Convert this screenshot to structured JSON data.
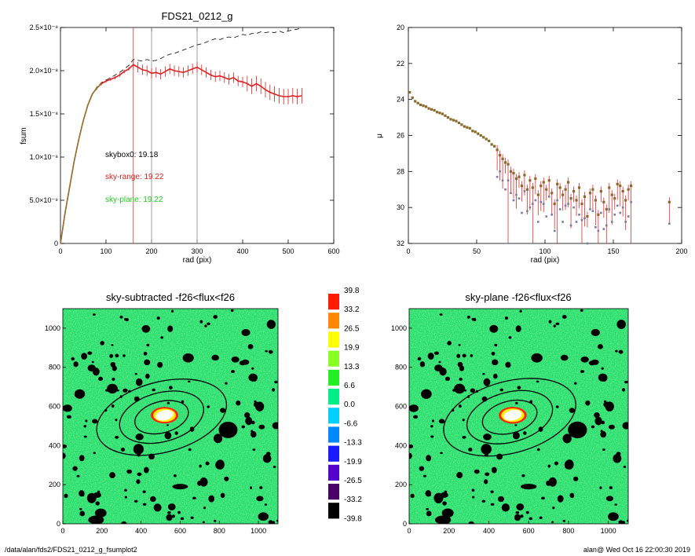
{
  "colors": {
    "fsum_red": "#e02020",
    "sky_red": "#e03030",
    "sky_green": "#22cc22",
    "dashed": "#222222",
    "curve_olive": "#8a7a2a",
    "marker": "#8a6a2a",
    "colorbar_levels": [
      "#000000",
      "#4a0066",
      "#5500cc",
      "#1a1aff",
      "#0088ff",
      "#00d0ff",
      "#00ee88",
      "#22ee22",
      "#88ff22",
      "#ffff00",
      "#ff8800",
      "#ff1a00"
    ]
  },
  "footer": {
    "left": "/data/alan/fds2/FDS21_0212_g_fsumplot2",
    "right": "alan@  Wed Oct 16 22:00:30 2019"
  },
  "chart_data": [
    {
      "type": "line",
      "title": "FDS21_0212_g",
      "xlabel": "rad (pix)",
      "ylabel": "fsum",
      "xlim": [
        0,
        600
      ],
      "ylim": [
        0,
        2.5e-08
      ],
      "xticks": [
        "0",
        "100",
        "200",
        "300",
        "400",
        "500",
        "600"
      ],
      "yticks": [
        "0",
        "5.0×10⁻⁹",
        "1.0×10⁻⁸",
        "1.5×10⁻⁸",
        "2.0×10⁻⁸",
        "2.5×10⁻⁸"
      ],
      "vlines": [
        {
          "x": 160,
          "color": "red"
        },
        {
          "x": 200,
          "color": "gray"
        },
        {
          "x": 300,
          "color": "gray"
        }
      ],
      "annotations": [
        {
          "text": "skybox0: 19.18",
          "color": "black"
        },
        {
          "text": "sky-range: 19.22",
          "color": "red"
        },
        {
          "text": "sky-plane: 19.22",
          "color": "green"
        }
      ],
      "series": [
        {
          "style": "solid",
          "x": [
            0,
            10,
            20,
            30,
            40,
            50,
            60,
            70,
            80,
            90,
            100,
            110,
            120,
            130,
            140,
            150,
            160,
            170,
            180,
            190,
            200,
            210,
            220,
            230,
            240,
            250,
            260,
            270,
            280,
            290,
            300,
            310,
            320,
            330,
            340,
            350,
            360,
            370,
            380,
            390,
            400,
            410,
            420,
            430,
            440,
            450,
            460,
            470,
            480,
            490,
            500,
            510,
            520,
            530
          ],
          "y": [
            0,
            3.5e-09,
            6.5e-09,
            9.5e-09,
            1.2e-08,
            1.42e-08,
            1.6e-08,
            1.73e-08,
            1.8e-08,
            1.85e-08,
            1.88e-08,
            1.9e-08,
            1.92e-08,
            1.95e-08,
            1.99e-08,
            2.02e-08,
            2.07e-08,
            2.04e-08,
            2.01e-08,
            2e-08,
            1.97e-08,
            1.98e-08,
            1.96e-08,
            1.99e-08,
            2.02e-08,
            2e-08,
            1.99e-08,
            1.98e-08,
            2e-08,
            2.02e-08,
            2.04e-08,
            2.01e-08,
            1.98e-08,
            1.95e-08,
            1.93e-08,
            1.94e-08,
            1.92e-08,
            1.9e-08,
            1.92e-08,
            1.88e-08,
            1.87e-08,
            1.85e-08,
            1.82e-08,
            1.85e-08,
            1.82e-08,
            1.78e-08,
            1.75e-08,
            1.73e-08,
            1.71e-08,
            1.7e-08,
            1.7e-08,
            1.71e-08,
            1.7e-08,
            1.71e-08
          ]
        },
        {
          "style": "dashed",
          "x": [
            0,
            10,
            20,
            30,
            40,
            50,
            60,
            70,
            80,
            90,
            100,
            110,
            120,
            130,
            140,
            150,
            160,
            170,
            180,
            190,
            200,
            210,
            220,
            230,
            240,
            250,
            260,
            270,
            280,
            290,
            300,
            310,
            320,
            330,
            340,
            350,
            360,
            370,
            380,
            390,
            400,
            410,
            420,
            430,
            440,
            450,
            460,
            470,
            480,
            490,
            500,
            510,
            520,
            530
          ],
          "y": [
            0,
            3.5e-09,
            6.5e-09,
            9.5e-09,
            1.2e-08,
            1.42e-08,
            1.6e-08,
            1.73e-08,
            1.81e-08,
            1.86e-08,
            1.89e-08,
            1.92e-08,
            1.95e-08,
            1.98e-08,
            2.02e-08,
            2.06e-08,
            2.13e-08,
            2.12e-08,
            2.11e-08,
            2.13e-08,
            2.11e-08,
            2.12e-08,
            2.14e-08,
            2.17e-08,
            2.19e-08,
            2.2e-08,
            2.22e-08,
            2.24e-08,
            2.26e-08,
            2.28e-08,
            2.3e-08,
            2.31e-08,
            2.33e-08,
            2.35e-08,
            2.37e-08,
            2.36e-08,
            2.38e-08,
            2.39e-08,
            2.38e-08,
            2.4e-08,
            2.42e-08,
            2.41e-08,
            2.43e-08,
            2.43e-08,
            2.45e-08,
            2.44e-08,
            2.45e-08,
            2.44e-08,
            2.46e-08,
            2.44e-08,
            2.46e-08,
            2.47e-08,
            2.48e-08,
            2.5e-08
          ]
        }
      ]
    },
    {
      "type": "scatter",
      "title": "",
      "xlabel": "rad (pix)",
      "ylabel": "μ",
      "xlim": [
        0,
        200
      ],
      "ylim": [
        32,
        20
      ],
      "xticks": [
        "0",
        "50",
        "100",
        "150",
        "200"
      ],
      "yticks": [
        "20",
        "22",
        "24",
        "26",
        "28",
        "30",
        "32"
      ],
      "series": [
        {
          "x": [
            1,
            3,
            5,
            7,
            9,
            11,
            13,
            15,
            17,
            19,
            21,
            23,
            25,
            27,
            29,
            31,
            33,
            35,
            37,
            39,
            41,
            43,
            45,
            47,
            49,
            51,
            53,
            55,
            57,
            59,
            61,
            63,
            65,
            67,
            69,
            71,
            73,
            75,
            77,
            79,
            81,
            83,
            85,
            87,
            89,
            91,
            93,
            95,
            97,
            99,
            101,
            103,
            105,
            107,
            109,
            111,
            113,
            115,
            117,
            119,
            121,
            123,
            125,
            127,
            129,
            131,
            133,
            135,
            137,
            139,
            141,
            143,
            145,
            147,
            149,
            151,
            153,
            155,
            157,
            159,
            161,
            163,
            191
          ],
          "y": [
            23.6,
            23.9,
            24.1,
            24.2,
            24.3,
            24.35,
            24.4,
            24.5,
            24.55,
            24.6,
            24.7,
            24.75,
            24.8,
            24.9,
            25.0,
            25.1,
            25.15,
            25.2,
            25.3,
            25.4,
            25.5,
            25.55,
            25.6,
            25.75,
            25.8,
            25.9,
            26.0,
            26.1,
            26.2,
            26.3,
            26.5,
            26.6,
            26.8,
            27.1,
            27.3,
            27.5,
            27.6,
            28.0,
            28.1,
            28.4,
            28.3,
            28.8,
            28.2,
            29.0,
            28.5,
            28.9,
            28.4,
            29.3,
            28.8,
            28.6,
            29.0,
            28.5,
            29.2,
            29.8,
            28.7,
            28.9,
            29.3,
            29.0,
            28.6,
            29.5,
            29.1,
            29.6,
            28.9,
            29.8,
            29.4,
            30.5,
            29.2,
            29.0,
            29.6,
            30.4,
            29.1,
            29.7,
            30.1,
            28.9,
            29.3,
            29.5,
            28.7,
            28.8,
            29.1,
            29.6,
            29.0,
            28.8,
            29.7
          ]
        }
      ]
    },
    {
      "type": "heatmap",
      "title": "sky-subtracted -f26<flux<f26",
      "xlim": [
        0,
        1100
      ],
      "ylim": [
        0,
        1100
      ],
      "xticks": [
        "0",
        "200",
        "400",
        "600",
        "800",
        "1000"
      ],
      "yticks": [
        "0",
        "200",
        "400",
        "600",
        "800",
        "1000"
      ]
    },
    {
      "type": "heatmap",
      "title": "sky-plane -f26<flux<f26",
      "xlim": [
        0,
        1100
      ],
      "ylim": [
        0,
        1100
      ],
      "xticks": [
        "0",
        "200",
        "400",
        "600",
        "800",
        "1000"
      ],
      "yticks": [
        "0",
        "200",
        "400",
        "600",
        "800",
        "1000"
      ]
    },
    {
      "type": "colorbar",
      "labels": [
        "39.8",
        "33.2",
        "26.5",
        "19.9",
        "13.3",
        "6.6",
        "0.0",
        "-6.6",
        "-13.3",
        "-19.9",
        "-26.5",
        "-33.2",
        "-39.8"
      ]
    }
  ]
}
